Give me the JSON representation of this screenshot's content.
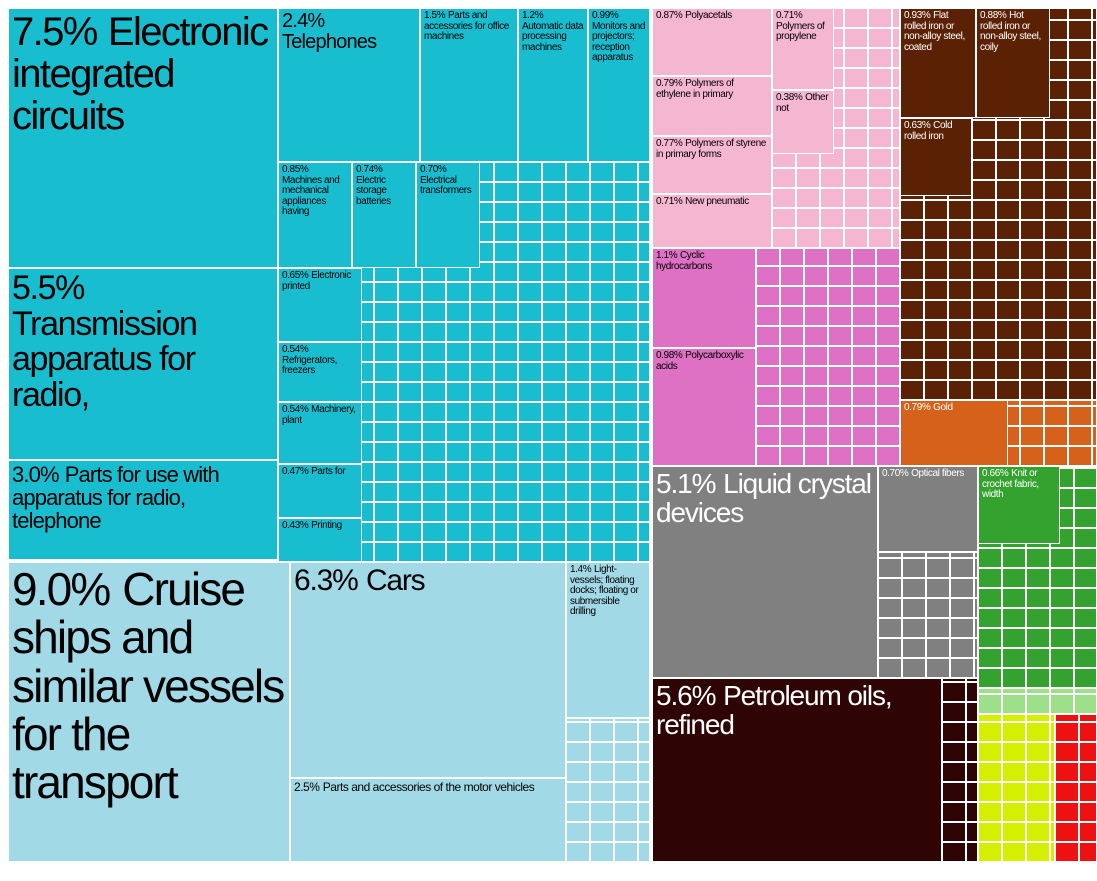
{
  "chart_data": {
    "type": "treemap",
    "categories": [
      "Electronic integrated circuits",
      "Transmission apparatus for radio,",
      "Parts for use with apparatus for radio, telephone",
      "Telephones",
      "Parts and accessories for office machines",
      "Automatic data processing machines",
      "Monitors and projectors; reception apparatus",
      "Machines and mechanical appliances having",
      "Electric storage batteries",
      "Electrical transformers",
      "Electronic printed",
      "Refrigerators, freezers",
      "Machinery, plant",
      "Parts for",
      "Printing",
      "Cruise ships and similar vessels for the transport",
      "Cars",
      "Parts and accessories of the motor vehicles",
      "Light-vessels; floating docks; floating or submersible drilling",
      "Polyacetals",
      "Polymers of ethylene in primary",
      "Polymers of styrene in primary forms",
      "New pneumatic",
      "Polymers of propylene",
      "Other not",
      "Cyclic hydrocarbons",
      "Polycarboxylic acids",
      "Liquid crystal devices",
      "Optical fibers",
      "Petroleum oils, refined",
      "Flat rolled iron or non-alloy steel, coated",
      "Hot rolled iron or non-alloy steel, coily",
      "Cold rolled iron",
      "Gold",
      "Knit or crochet fabric, width"
    ],
    "values": [
      7.5,
      5.5,
      3.0,
      2.4,
      1.5,
      1.2,
      0.99,
      0.85,
      0.74,
      0.7,
      0.65,
      0.54,
      0.54,
      0.47,
      0.43,
      9.0,
      6.3,
      2.5,
      1.4,
      0.87,
      0.79,
      0.77,
      0.71,
      0.71,
      0.38,
      1.1,
      0.98,
      5.1,
      0.7,
      5.6,
      0.93,
      0.88,
      0.63,
      0.79,
      0.66
    ],
    "value_labels": [
      "7.5%",
      "5.5%",
      "3.0%",
      "2.4%",
      "1.5%",
      "1.2%",
      "0.99%",
      "0.85%",
      "0.74%",
      "0.70%",
      "0.65%",
      "0.54%",
      "0.54%",
      "0.47%",
      "0.43%",
      "9.0%",
      "6.3%",
      "2.5%",
      "1.4%",
      "0.87%",
      "0.79%",
      "0.77%",
      "0.71%",
      "0.71%",
      "0.38%",
      "1.1%",
      "0.98%",
      "5.1%",
      "0.70%",
      "5.6%",
      "0.93%",
      "0.88%",
      "0.63%",
      "0.79%",
      "0.66%"
    ],
    "colors": [
      "#19bdd0",
      "#19bdd0",
      "#19bdd0",
      "#19bdd0",
      "#19bdd0",
      "#19bdd0",
      "#19bdd0",
      "#19bdd0",
      "#19bdd0",
      "#19bdd0",
      "#19bdd0",
      "#19bdd0",
      "#19bdd0",
      "#19bdd0",
      "#19bdd0",
      "#a1d9e6",
      "#a1d9e6",
      "#a1d9e6",
      "#a1d9e6",
      "#f5b6d0",
      "#f5b6d0",
      "#f5b6d0",
      "#f5b6d0",
      "#f5b6d0",
      "#f5b6d0",
      "#de71c3",
      "#de71c3",
      "#808080",
      "#808080",
      "#2e0404",
      "#5b2104",
      "#5b2104",
      "#5b2104",
      "#d6611a",
      "#34a22e"
    ]
  }
}
